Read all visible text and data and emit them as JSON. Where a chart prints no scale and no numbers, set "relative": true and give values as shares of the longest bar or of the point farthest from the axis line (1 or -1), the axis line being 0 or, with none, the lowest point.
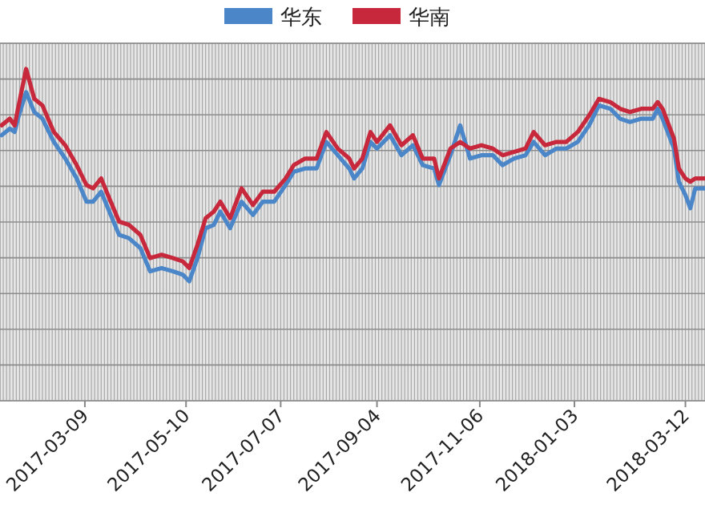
{
  "chart_data": {
    "type": "line",
    "relative": true,
    "legend": "top",
    "grid": true,
    "line_style": "solid",
    "marker": "none",
    "xlim": [
      "2017-01-16",
      "2018-03-24"
    ],
    "xticks": [
      "2017-03-09",
      "2017-05-10",
      "2017-07-07",
      "2017-09-04",
      "2017-11-06",
      "2018-01-03",
      "2018-03-12"
    ],
    "x": [
      "2017-01-17",
      "2017-01-22",
      "2017-01-25",
      "2017-01-27",
      "2017-02-01",
      "2017-02-06",
      "2017-02-11",
      "2017-02-18",
      "2017-02-25",
      "2017-03-04",
      "2017-03-10",
      "2017-03-14",
      "2017-03-19",
      "2017-03-24",
      "2017-03-30",
      "2017-04-05",
      "2017-04-12",
      "2017-04-18",
      "2017-04-25",
      "2017-05-02",
      "2017-05-08",
      "2017-05-12",
      "2017-05-17",
      "2017-05-22",
      "2017-05-27",
      "2017-05-31",
      "2017-06-06",
      "2017-06-13",
      "2017-06-20",
      "2017-06-26",
      "2017-07-03",
      "2017-07-10",
      "2017-07-15",
      "2017-07-22",
      "2017-07-29",
      "2017-08-04",
      "2017-08-11",
      "2017-08-18",
      "2017-08-21",
      "2017-08-26",
      "2017-08-31",
      "2017-09-04",
      "2017-09-12",
      "2017-09-19",
      "2017-09-26",
      "2017-10-02",
      "2017-10-09",
      "2017-10-12",
      "2017-10-19",
      "2017-10-25",
      "2017-10-31",
      "2017-11-07",
      "2017-11-14",
      "2017-11-20",
      "2017-11-27",
      "2017-12-04",
      "2017-12-09",
      "2017-12-16",
      "2017-12-23",
      "2017-12-29",
      "2018-01-05",
      "2018-01-12",
      "2018-01-18",
      "2018-01-25",
      "2018-01-31",
      "2018-02-06",
      "2018-02-13",
      "2018-02-20",
      "2018-02-23",
      "2018-02-26",
      "2018-03-05",
      "2018-03-08",
      "2018-03-12",
      "2018-03-15",
      "2018-03-18",
      "2018-03-24"
    ],
    "series": [
      {
        "name": "华东",
        "color": "#4a86c8",
        "values": [
          0.8,
          0.82,
          0.81,
          0.85,
          0.93,
          0.87,
          0.85,
          0.78,
          0.73,
          0.67,
          0.6,
          0.6,
          0.63,
          0.57,
          0.5,
          0.49,
          0.46,
          0.39,
          0.4,
          0.39,
          0.38,
          0.36,
          0.43,
          0.52,
          0.53,
          0.57,
          0.52,
          0.6,
          0.56,
          0.6,
          0.6,
          0.65,
          0.69,
          0.7,
          0.7,
          0.78,
          0.74,
          0.7,
          0.67,
          0.7,
          0.78,
          0.76,
          0.8,
          0.74,
          0.77,
          0.71,
          0.7,
          0.65,
          0.74,
          0.83,
          0.73,
          0.74,
          0.74,
          0.71,
          0.73,
          0.74,
          0.78,
          0.74,
          0.76,
          0.76,
          0.78,
          0.83,
          0.89,
          0.88,
          0.85,
          0.84,
          0.85,
          0.85,
          0.88,
          0.85,
          0.76,
          0.66,
          0.62,
          0.58,
          0.64,
          0.64
        ]
      },
      {
        "name": "华南",
        "color": "#c8283c",
        "values": [
          0.83,
          0.85,
          0.83,
          0.88,
          1,
          0.91,
          0.89,
          0.81,
          0.77,
          0.71,
          0.65,
          0.64,
          0.67,
          0.61,
          0.54,
          0.53,
          0.5,
          0.43,
          0.44,
          0.43,
          0.42,
          0.4,
          0.47,
          0.55,
          0.57,
          0.6,
          0.55,
          0.64,
          0.59,
          0.63,
          0.63,
          0.67,
          0.71,
          0.73,
          0.73,
          0.81,
          0.76,
          0.73,
          0.7,
          0.73,
          0.81,
          0.78,
          0.83,
          0.77,
          0.8,
          0.73,
          0.73,
          0.67,
          0.76,
          0.78,
          0.76,
          0.77,
          0.76,
          0.74,
          0.75,
          0.76,
          0.81,
          0.77,
          0.78,
          0.78,
          0.81,
          0.86,
          0.91,
          0.9,
          0.88,
          0.87,
          0.88,
          0.88,
          0.9,
          0.88,
          0.79,
          0.7,
          0.67,
          0.66,
          0.67,
          0.67
        ]
      }
    ]
  }
}
